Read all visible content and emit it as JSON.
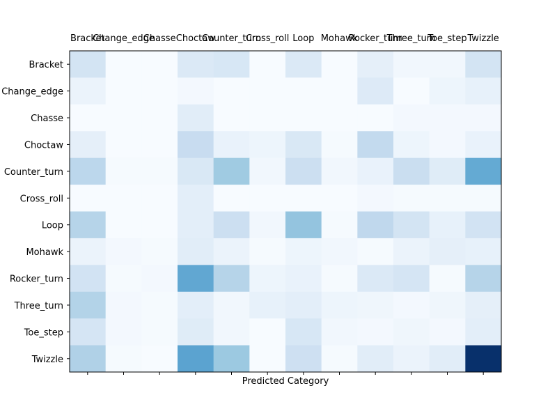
{
  "chart_data": {
    "type": "heatmap",
    "title": "",
    "xlabel": "Predicted Category",
    "ylabel": "",
    "x_categories": [
      "Bracket",
      "Change_edge",
      "Chasse",
      "Choctaw",
      "Counter_turn",
      "Cross_roll",
      "Loop",
      "Mohawk",
      "Rocker_turn",
      "Three_turn",
      "Toe_step",
      "Twizzle"
    ],
    "y_categories": [
      "Bracket",
      "Change_edge",
      "Chasse",
      "Choctaw",
      "Counter_turn",
      "Cross_roll",
      "Loop",
      "Mohawk",
      "Rocker_turn",
      "Three_turn",
      "Toe_step",
      "Twizzle"
    ],
    "colormap": "Blues",
    "vmin": 0,
    "vmax": 100,
    "values": [
      [
        18,
        0,
        0,
        14,
        16,
        0,
        14,
        0,
        9,
        3,
        3,
        18
      ],
      [
        6,
        0,
        0,
        2,
        0,
        0,
        0,
        0,
        13,
        0,
        5,
        8
      ],
      [
        0,
        0,
        0,
        11,
        0,
        0,
        0,
        0,
        0,
        2,
        2,
        2
      ],
      [
        9,
        0,
        0,
        24,
        7,
        5,
        15,
        1,
        26,
        5,
        2,
        7
      ],
      [
        28,
        1,
        1,
        15,
        37,
        3,
        22,
        3,
        7,
        23,
        12,
        52
      ],
      [
        0,
        0,
        0,
        10,
        0,
        0,
        0,
        0,
        2,
        1,
        1,
        1
      ],
      [
        30,
        0,
        0,
        10,
        22,
        3,
        40,
        1,
        27,
        18,
        8,
        19
      ],
      [
        6,
        2,
        1,
        11,
        6,
        1,
        5,
        3,
        1,
        6,
        9,
        8
      ],
      [
        19,
        1,
        2,
        53,
        30,
        5,
        7,
        1,
        14,
        17,
        1,
        30
      ],
      [
        31,
        2,
        1,
        10,
        3,
        8,
        10,
        5,
        4,
        2,
        4,
        9
      ],
      [
        17,
        2,
        1,
        12,
        3,
        0,
        16,
        3,
        2,
        4,
        2,
        10
      ],
      [
        32,
        1,
        0,
        55,
        38,
        0,
        21,
        1,
        11,
        6,
        11,
        100
      ]
    ]
  }
}
